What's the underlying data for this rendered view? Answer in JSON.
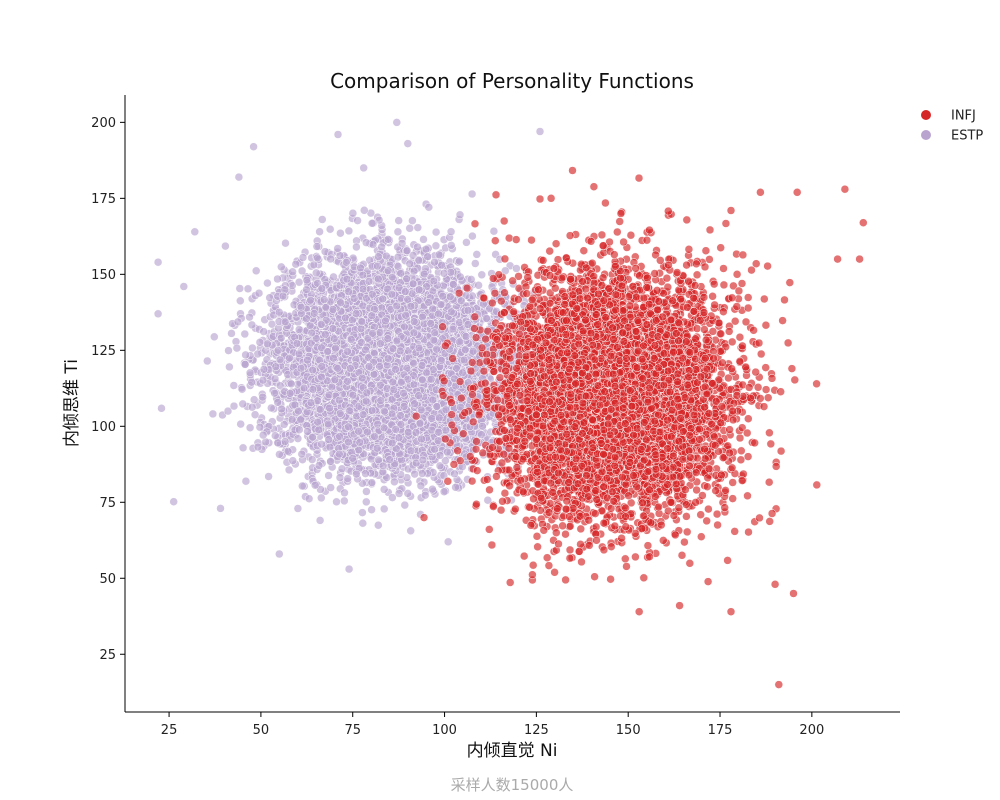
{
  "chart_data": {
    "type": "scatter",
    "title": "Comparison of Personality Functions",
    "xlabel": "内倾直觉 Ni",
    "ylabel": "内倾思维 Ti",
    "caption": "采样人数15000人",
    "xlim": [
      13,
      224
    ],
    "ylim": [
      6,
      209
    ],
    "xticks": [
      25,
      50,
      75,
      100,
      125,
      150,
      175,
      200
    ],
    "yticks": [
      25,
      50,
      75,
      100,
      125,
      150,
      175,
      200
    ],
    "grid": false,
    "legend_position": "top-right outside",
    "series": [
      {
        "name": "INFJ",
        "color": "#d62728",
        "center": [
          145,
          110
        ],
        "spread": [
          15,
          19
        ],
        "count": 7500,
        "outliers": [
          [
            191,
            15
          ],
          [
            153,
            39
          ],
          [
            178,
            39
          ],
          [
            190,
            48
          ],
          [
            164,
            41
          ],
          [
            195,
            45
          ],
          [
            209,
            178
          ],
          [
            186,
            177
          ],
          [
            196,
            177
          ],
          [
            129,
            175
          ],
          [
            214,
            167
          ],
          [
            213,
            155
          ],
          [
            207,
            155
          ],
          [
            148,
            170
          ],
          [
            178,
            171
          ]
        ]
      },
      {
        "name": "ESTP",
        "color": "#b9a4cf",
        "center": [
          85,
          120
        ],
        "spread": [
          15,
          16
        ],
        "count": 7500,
        "outliers": [
          [
            22,
            154
          ],
          [
            22,
            137
          ],
          [
            29,
            146
          ],
          [
            32,
            164
          ],
          [
            39,
            73
          ],
          [
            55,
            58
          ],
          [
            74,
            53
          ],
          [
            101,
            62
          ],
          [
            87,
            200
          ],
          [
            71,
            196
          ],
          [
            126,
            197
          ],
          [
            48,
            192
          ],
          [
            90,
            193
          ],
          [
            44,
            182
          ],
          [
            78,
            185
          ]
        ]
      }
    ]
  }
}
